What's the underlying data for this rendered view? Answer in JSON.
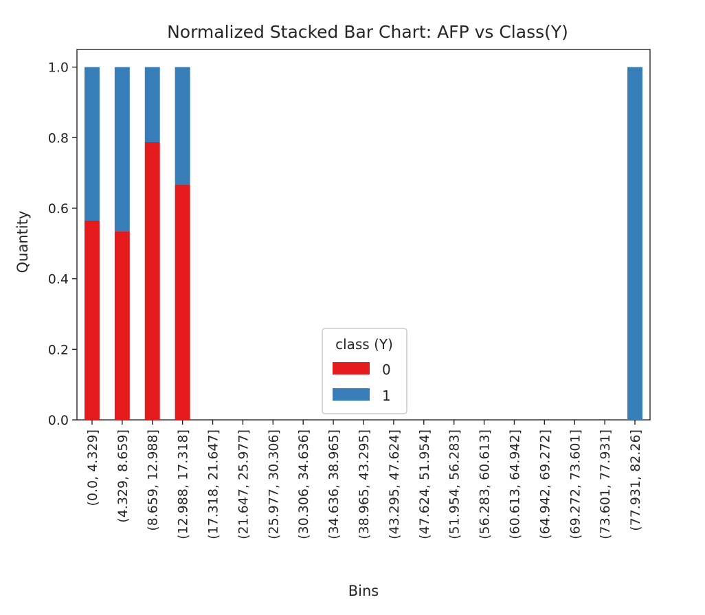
{
  "chart_data": {
    "type": "bar",
    "stacked": true,
    "title": "Normalized Stacked Bar Chart: AFP vs Class(Y)",
    "xlabel": "Bins",
    "ylabel": "Quantity",
    "ylim": [
      0,
      1.05
    ],
    "yticks": [
      "0.0",
      "0.2",
      "0.4",
      "0.6",
      "0.8",
      "1.0"
    ],
    "grid": false,
    "categories": [
      "(0.0, 4.329]",
      "(4.329, 8.659]",
      "(8.659, 12.988]",
      "(12.988, 17.318]",
      "(17.318, 21.647]",
      "(21.647, 25.977]",
      "(25.977, 30.306]",
      "(30.306, 34.636]",
      "(34.636, 38.965]",
      "(38.965, 43.295]",
      "(43.295, 47.624]",
      "(47.624, 51.954]",
      "(51.954, 56.283]",
      "(56.283, 60.613]",
      "(60.613, 64.942]",
      "(64.942, 69.272]",
      "(69.272, 73.601]",
      "(73.601, 77.931]",
      "(77.931, 82.26]"
    ],
    "series": [
      {
        "name": "0",
        "color": "#e41a1c",
        "values": [
          0.565,
          0.535,
          0.787,
          0.667,
          0,
          0,
          0,
          0,
          0,
          0,
          0,
          0,
          0,
          0,
          0,
          0,
          0,
          0,
          0
        ]
      },
      {
        "name": "1",
        "color": "#377eb8",
        "values": [
          0.435,
          0.465,
          0.213,
          0.333,
          0,
          0,
          0,
          0,
          0,
          0,
          0,
          0,
          0,
          0,
          0,
          0,
          0,
          0,
          1.0
        ]
      }
    ],
    "legend": {
      "title": "class (Y)",
      "placement": "lower-center"
    }
  }
}
